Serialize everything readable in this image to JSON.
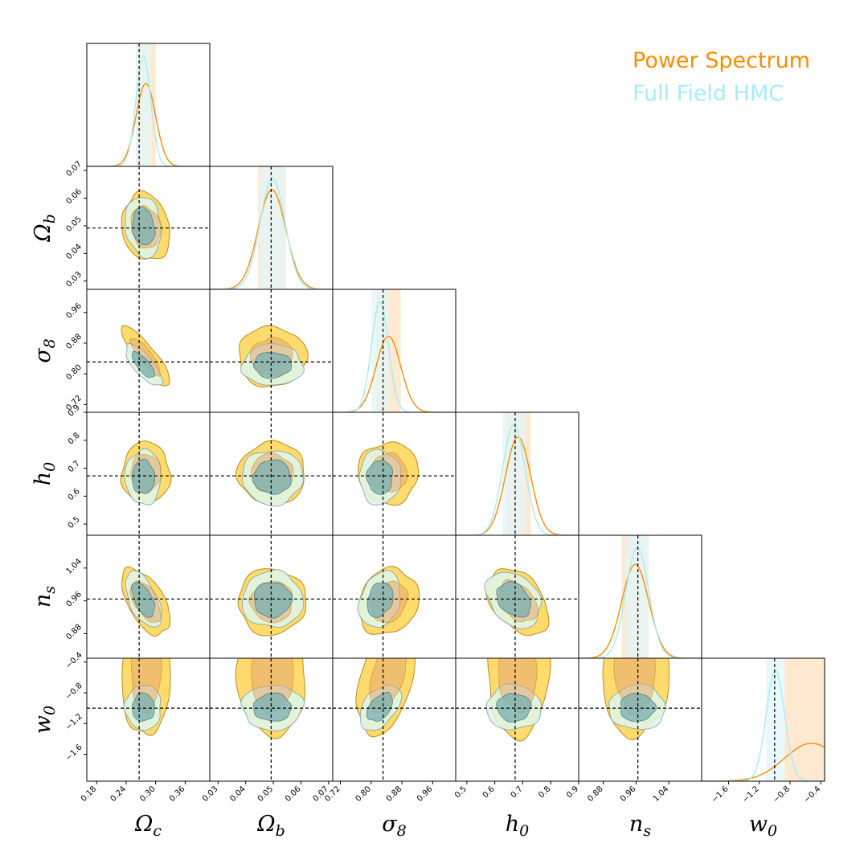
{
  "legend": [
    {
      "label": "Power Spectrum",
      "color": "#ff8c00"
    },
    {
      "label": "Full Field HMC",
      "color": "#a6ecf8"
    }
  ],
  "colors": {
    "ps_outer": "#ffd966",
    "ps_inner": "#e3a86f",
    "ps_edge": "#b8860b",
    "hmc_outer": "#dff6e6",
    "hmc_inner": "#7fb3b3",
    "hmc_edge": "#8aa7b7",
    "ps_line": "#ff8c00",
    "hmc_line": "#a6ecf8",
    "ps_band": "#ffe2c2",
    "hmc_band": "#e2f6f8",
    "truth_line": "#000000"
  },
  "chart_data": {
    "type": "corner",
    "legend_placement": "top-right",
    "parameters": [
      {
        "symbol": "Ω",
        "sub": "c",
        "label": "Ωc",
        "truth": 0.2664,
        "ticks": [
          0.18,
          0.24,
          0.3,
          0.36
        ],
        "tick_labels": [
          "0.18",
          "0.24",
          "0.30",
          "0.36"
        ],
        "range": [
          0.16,
          0.41
        ]
      },
      {
        "symbol": "Ω",
        "sub": "b",
        "label": "Ωb",
        "truth": 0.0492,
        "ticks": [
          0.03,
          0.04,
          0.05,
          0.06,
          0.07
        ],
        "tick_labels": [
          "0.03",
          "0.04",
          "0.05",
          "0.06",
          "0.07"
        ],
        "range": [
          0.027,
          0.0715
        ]
      },
      {
        "symbol": "σ",
        "sub": "8",
        "label": "σ8",
        "truth": 0.831,
        "ticks": [
          0.72,
          0.8,
          0.88,
          0.96
        ],
        "tick_labels": [
          "0.72",
          "0.80",
          "0.88",
          "0.96"
        ],
        "range": [
          0.7,
          1.02
        ]
      },
      {
        "symbol": "h",
        "sub": "0",
        "label": "h0",
        "truth": 0.6727,
        "ticks": [
          0.5,
          0.6,
          0.7,
          0.8,
          0.9
        ],
        "tick_labels": [
          "0.5",
          "0.6",
          "0.7",
          "0.8",
          "0.9"
        ],
        "range": [
          0.46,
          0.9
        ]
      },
      {
        "symbol": "n",
        "sub": "s",
        "label": "ns",
        "truth": 0.9645,
        "ticks": [
          0.88,
          0.96,
          1.04
        ],
        "tick_labels": [
          "0.88",
          "0.96",
          "1.04"
        ],
        "range": [
          0.82,
          1.12
        ]
      },
      {
        "symbol": "w",
        "sub": "0",
        "label": "w0",
        "truth": -1.0,
        "ticks": [
          -1.6,
          -1.2,
          -0.8,
          -0.4
        ],
        "tick_labels": [
          "−1.6",
          "−1.2",
          "−0.8",
          "−0.4"
        ],
        "range": [
          -1.95,
          -0.35
        ]
      }
    ],
    "series": [
      {
        "name": "Power Spectrum",
        "means": [
          0.28,
          0.0495,
          0.845,
          0.683,
          0.958,
          -0.52
        ],
        "sigmas": [
          0.02,
          0.005,
          0.032,
          0.045,
          0.033,
          0.35
        ],
        "corr": [
          [
            1,
            -0.15,
            -0.85,
            0,
            -0.55,
            0
          ],
          [
            -0.15,
            1,
            0,
            0,
            0,
            0
          ],
          [
            -0.85,
            0,
            1,
            0,
            0.15,
            0.5
          ],
          [
            0,
            0,
            0,
            1,
            -0.4,
            0
          ],
          [
            -0.55,
            0,
            0.15,
            -0.4,
            1,
            0
          ],
          [
            0,
            0,
            0.5,
            0,
            0,
            1
          ]
        ]
      },
      {
        "name": "Full Field HMC",
        "means": [
          0.275,
          0.0497,
          0.823,
          0.668,
          0.963,
          -0.99
        ],
        "sigmas": [
          0.015,
          0.0045,
          0.022,
          0.04,
          0.028,
          0.12
        ],
        "corr": [
          [
            1,
            -0.15,
            -0.75,
            0,
            -0.55,
            0
          ],
          [
            -0.15,
            1,
            0,
            0,
            0,
            0
          ],
          [
            -0.75,
            0,
            1,
            0,
            0.25,
            0.45
          ],
          [
            0,
            0,
            0,
            1,
            -0.3,
            0
          ],
          [
            -0.55,
            0,
            0.25,
            -0.3,
            1,
            0
          ],
          [
            0,
            0,
            0.45,
            0,
            0,
            1
          ]
        ]
      }
    ],
    "credible_levels": [
      "68%",
      "95%"
    ]
  }
}
